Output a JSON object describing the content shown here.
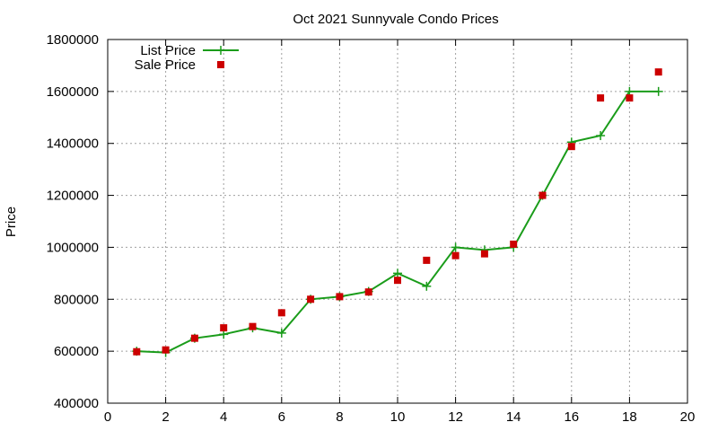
{
  "chart_data": {
    "type": "line",
    "title": "Oct 2021 Sunnyvale Condo Prices",
    "xlabel": "",
    "ylabel": "Price",
    "xlim": [
      0,
      20
    ],
    "ylim": [
      400000,
      1800000
    ],
    "xticks": [
      0,
      2,
      4,
      6,
      8,
      10,
      12,
      14,
      16,
      18,
      20
    ],
    "yticks": [
      400000,
      600000,
      800000,
      1000000,
      1200000,
      1400000,
      1600000,
      1800000
    ],
    "grid": true,
    "legend_position": "top-left",
    "series": [
      {
        "name": "List Price",
        "style": "line+plus-markers",
        "color": "#1a9c1a",
        "x": [
          1,
          2,
          3,
          4,
          5,
          6,
          7,
          8,
          9,
          10,
          11,
          12,
          13,
          14,
          15,
          16,
          17,
          18,
          19
        ],
        "y": [
          600000,
          595000,
          650000,
          665000,
          690000,
          670000,
          800000,
          810000,
          830000,
          900000,
          850000,
          1000000,
          990000,
          1000000,
          1200000,
          1405000,
          1430000,
          1600000,
          1600000
        ]
      },
      {
        "name": "Sale Price",
        "style": "square-markers",
        "color": "#cc0000",
        "x": [
          1,
          2,
          3,
          4,
          5,
          6,
          7,
          8,
          9,
          10,
          11,
          12,
          13,
          14,
          15,
          16,
          17,
          18,
          19
        ],
        "y": [
          598000,
          605000,
          650000,
          690000,
          695000,
          748000,
          800000,
          810000,
          828000,
          873000,
          950000,
          968000,
          975000,
          1012000,
          1200000,
          1388000,
          1575000,
          1575000,
          1675000
        ]
      }
    ]
  }
}
